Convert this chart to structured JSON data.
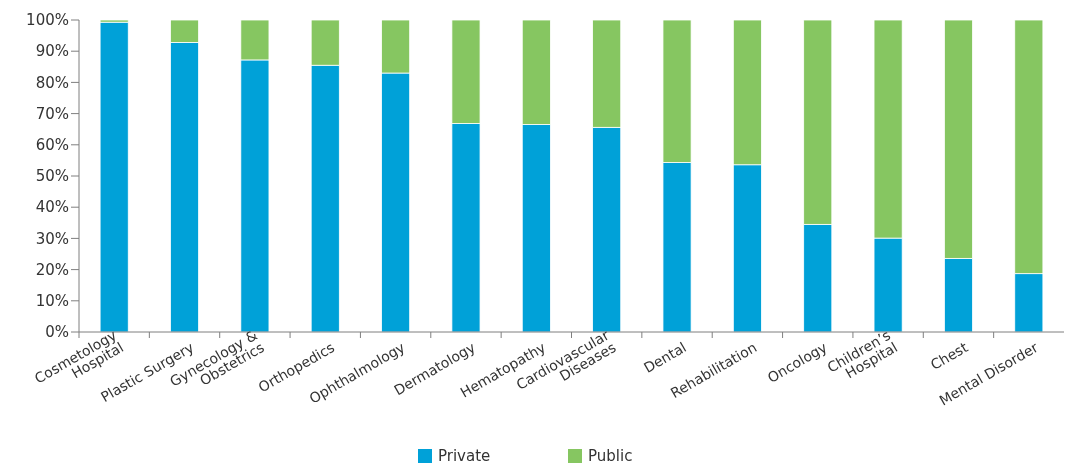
{
  "chart_data": {
    "type": "bar",
    "stacked": true,
    "categories": [
      "Cosmetology\nHospital",
      "Plastic Surgery",
      "Gynecology &\nObstetrics",
      "Orthopedics",
      "Ophthalmology",
      "Dermatology",
      "Hematopathy",
      "Cardiovascular\nDiseases",
      "Dental",
      "Rehabilitation",
      "Oncology",
      "Children’s\nHospital",
      "Chest",
      "Mental Disorder"
    ],
    "series": [
      {
        "name": "Private",
        "color": "#00a1d8",
        "values": [
          99.3,
          92.8,
          87.2,
          85.5,
          83,
          66.8,
          66.5,
          65.6,
          54.3,
          53.6,
          34.5,
          30.1,
          23.6,
          18.7
        ]
      },
      {
        "name": "Public",
        "color": "#86c661",
        "values": [
          0.7,
          7.2,
          12.8,
          14.5,
          17,
          33.2,
          33.5,
          34.4,
          45.7,
          46.4,
          65.5,
          69.9,
          76.4,
          81.3
        ]
      }
    ],
    "ylim": [
      0,
      100
    ],
    "yticks": [
      {
        "value": 0,
        "label": "0%"
      },
      {
        "value": 10,
        "label": "10%"
      },
      {
        "value": 20,
        "label": "20%"
      },
      {
        "value": 30,
        "label": "30%"
      },
      {
        "value": 40,
        "label": "40%"
      },
      {
        "value": 50,
        "label": "50%"
      },
      {
        "value": 60,
        "label": "60%"
      },
      {
        "value": 70,
        "label": "70%"
      },
      {
        "value": 80,
        "label": "80%"
      },
      {
        "value": 90,
        "label": "90%"
      },
      {
        "value": 100,
        "label": "100%"
      }
    ],
    "legend": "bottom"
  }
}
